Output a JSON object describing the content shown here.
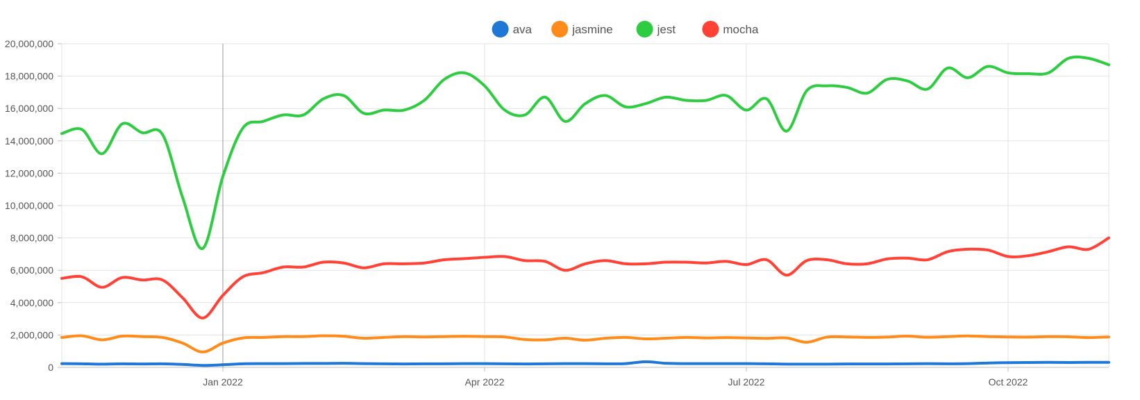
{
  "chart_data": {
    "type": "line",
    "title": "",
    "xlabel": "",
    "ylabel": "",
    "legend_position": "top-center",
    "grid": true,
    "x_range": [
      "2021-11-07",
      "2022-11-06"
    ],
    "ylim": [
      0,
      20000000
    ],
    "y_ticks": [
      0,
      2000000,
      4000000,
      6000000,
      8000000,
      10000000,
      12000000,
      14000000,
      16000000,
      18000000,
      20000000
    ],
    "y_tick_labels": [
      "0",
      "2,000,000",
      "4,000,000",
      "6,000,000",
      "8,000,000",
      "10,000,000",
      "12,000,000",
      "14,000,000",
      "16,000,000",
      "18,000,000",
      "20,000,000"
    ],
    "x_ticks": [
      {
        "date": "2022-01-02",
        "label": "Jan 2022"
      },
      {
        "date": "2022-04-03",
        "label": "Apr 2022"
      },
      {
        "date": "2022-07-03",
        "label": "Jul 2022"
      },
      {
        "date": "2022-10-02",
        "label": "Oct 2022"
      }
    ],
    "highlight_date": "2022-01-02",
    "x": [
      "2021-11-07",
      "2021-11-14",
      "2021-11-21",
      "2021-11-28",
      "2021-12-05",
      "2021-12-12",
      "2021-12-19",
      "2021-12-26",
      "2022-01-02",
      "2022-01-09",
      "2022-01-16",
      "2022-01-23",
      "2022-01-30",
      "2022-02-06",
      "2022-02-13",
      "2022-02-20",
      "2022-02-27",
      "2022-03-06",
      "2022-03-13",
      "2022-03-20",
      "2022-03-27",
      "2022-04-03",
      "2022-04-10",
      "2022-04-17",
      "2022-04-24",
      "2022-05-01",
      "2022-05-08",
      "2022-05-15",
      "2022-05-22",
      "2022-05-29",
      "2022-06-05",
      "2022-06-12",
      "2022-06-19",
      "2022-06-26",
      "2022-07-03",
      "2022-07-10",
      "2022-07-17",
      "2022-07-24",
      "2022-07-31",
      "2022-08-07",
      "2022-08-14",
      "2022-08-21",
      "2022-08-28",
      "2022-09-04",
      "2022-09-11",
      "2022-09-18",
      "2022-09-25",
      "2022-10-02",
      "2022-10-09",
      "2022-10-16",
      "2022-10-23",
      "2022-10-30",
      "2022-11-06"
    ],
    "series": [
      {
        "name": "ava",
        "color": "#1f77d6",
        "values": [
          230000,
          220000,
          200000,
          220000,
          210000,
          220000,
          180000,
          120000,
          160000,
          220000,
          230000,
          230000,
          240000,
          240000,
          250000,
          230000,
          220000,
          210000,
          220000,
          220000,
          230000,
          230000,
          220000,
          210000,
          220000,
          230000,
          230000,
          220000,
          230000,
          350000,
          250000,
          230000,
          230000,
          230000,
          230000,
          220000,
          200000,
          200000,
          200000,
          210000,
          210000,
          210000,
          220000,
          230000,
          220000,
          230000,
          270000,
          290000,
          300000,
          310000,
          300000,
          310000,
          310000
        ]
      },
      {
        "name": "jasmine",
        "color": "#ff8c1a",
        "values": [
          1850000,
          1950000,
          1700000,
          1930000,
          1900000,
          1850000,
          1500000,
          950000,
          1500000,
          1820000,
          1850000,
          1900000,
          1900000,
          1950000,
          1920000,
          1800000,
          1850000,
          1900000,
          1880000,
          1900000,
          1920000,
          1900000,
          1880000,
          1720000,
          1700000,
          1800000,
          1680000,
          1800000,
          1850000,
          1760000,
          1800000,
          1850000,
          1820000,
          1840000,
          1820000,
          1790000,
          1820000,
          1550000,
          1870000,
          1880000,
          1850000,
          1870000,
          1930000,
          1860000,
          1900000,
          1940000,
          1900000,
          1880000,
          1870000,
          1900000,
          1890000,
          1840000,
          1880000
        ]
      },
      {
        "name": "jest",
        "color": "#2ecc40",
        "values": [
          14450000,
          14700000,
          13200000,
          15050000,
          14500000,
          14400000,
          10500000,
          7350000,
          11800000,
          14800000,
          15200000,
          15600000,
          15600000,
          16600000,
          16800000,
          15700000,
          15900000,
          15900000,
          16500000,
          17800000,
          18200000,
          17400000,
          15900000,
          15600000,
          16700000,
          15200000,
          16300000,
          16800000,
          16100000,
          16300000,
          16700000,
          16500000,
          16500000,
          16800000,
          15900000,
          16600000,
          14600000,
          17100000,
          17400000,
          17300000,
          16950000,
          17800000,
          17700000,
          17200000,
          18500000,
          17900000,
          18600000,
          18200000,
          18150000,
          18200000,
          19100000,
          19100000,
          18700000
        ]
      },
      {
        "name": "mocha",
        "color": "#ff4136",
        "values": [
          5500000,
          5600000,
          4950000,
          5550000,
          5400000,
          5400000,
          4300000,
          3050000,
          4450000,
          5600000,
          5850000,
          6200000,
          6200000,
          6500000,
          6450000,
          6150000,
          6400000,
          6400000,
          6450000,
          6650000,
          6720000,
          6800000,
          6850000,
          6600000,
          6550000,
          6000000,
          6400000,
          6600000,
          6400000,
          6400000,
          6500000,
          6500000,
          6450000,
          6550000,
          6350000,
          6650000,
          5700000,
          6600000,
          6650000,
          6400000,
          6400000,
          6700000,
          6750000,
          6650000,
          7150000,
          7300000,
          7250000,
          6850000,
          6900000,
          7150000,
          7450000,
          7300000,
          8000000
        ]
      }
    ]
  }
}
